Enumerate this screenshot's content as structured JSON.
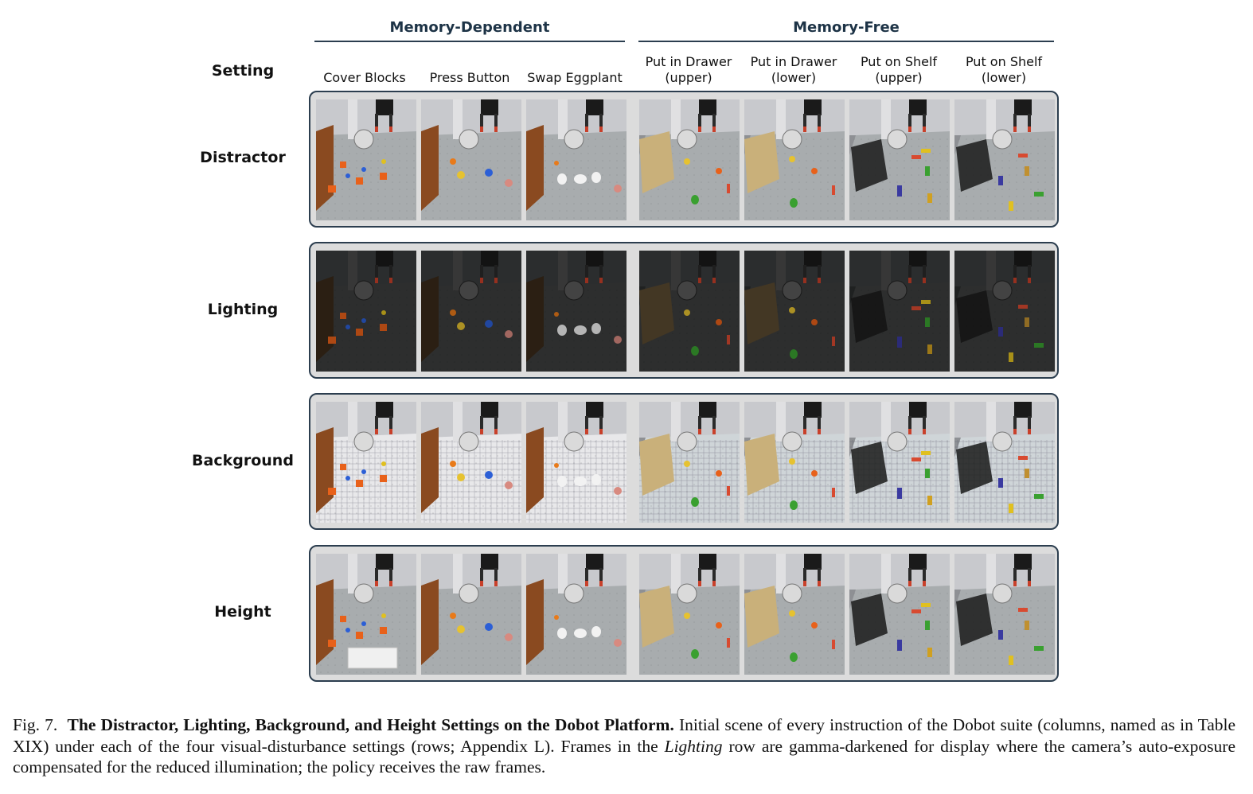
{
  "figure": {
    "groups": [
      {
        "title": "Memory-Dependent"
      },
      {
        "title": "Memory-Free"
      }
    ],
    "setting_header": "Setting",
    "columns": [
      {
        "label": "Cover Blocks"
      },
      {
        "label": "Press Button"
      },
      {
        "label": "Swap Eggplant"
      },
      {
        "label": "Put in Drawer\n(upper)"
      },
      {
        "label": "Put in Drawer\n(lower)"
      },
      {
        "label": "Put on Shelf\n(upper)"
      },
      {
        "label": "Put on Shelf\n(lower)"
      }
    ],
    "rows": [
      {
        "label": "Distractor"
      },
      {
        "label": "Lighting"
      },
      {
        "label": "Background"
      },
      {
        "label": "Height"
      }
    ]
  },
  "caption": {
    "prefix": "Fig. 7.",
    "title": "The Distractor, Lighting, Background, and Height Settings on the Dobot Platform.",
    "text_1": "Initial scene of every instruction of the Dobot suite (columns, named as in Table XIX) under each of the four visual-disturbance settings (rows; Appendix L). Frames in the",
    "emphasis": "Lighting",
    "text_2": "row are gamma-darkened for display where the camera’s auto-exposure compensated for the reduced illumination; the policy receives the raw frames."
  }
}
